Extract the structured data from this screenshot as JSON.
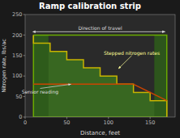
{
  "chart_data": {
    "type": "line",
    "title": "Ramp calibration strip",
    "xlabel": "Distance, feet",
    "ylabel": "Nitrogen rate, lbs/ac",
    "xlim": [
      0,
      180
    ],
    "ylim": [
      0,
      250
    ],
    "xticks": [
      0,
      50,
      100,
      150
    ],
    "yticks": [
      0,
      50,
      100,
      150,
      200,
      250
    ],
    "series": [
      {
        "type": "area",
        "color": "#3a6e20",
        "x": [
          10,
          10,
          30,
          30,
          50,
          50,
          70,
          70,
          90,
          90,
          110,
          110,
          130,
          130,
          150,
          150,
          170,
          170,
          170,
          10
        ],
        "values": [
          200,
          180,
          180,
          160,
          160,
          140,
          140,
          120,
          120,
          100,
          100,
          80,
          80,
          60,
          60,
          40,
          40,
          0,
          0,
          0
        ]
      },
      {
        "type": "area",
        "color": "#2d5a1b",
        "x": [
          10,
          28,
          28,
          10
        ],
        "values": [
          0,
          0,
          200,
          200
        ]
      },
      {
        "type": "area",
        "color": "#2d5a1b",
        "x": [
          155,
          170,
          170,
          155
        ],
        "values": [
          0,
          0,
          200,
          200
        ]
      },
      {
        "type": "line",
        "color": "#6aaa00",
        "x": [
          10,
          170,
          170,
          10,
          10
        ],
        "values": [
          200,
          200,
          0,
          0,
          200
        ]
      },
      {
        "type": "line",
        "color": "#c8b400",
        "x": [
          10,
          10,
          30,
          30,
          50,
          50,
          70,
          70,
          90,
          90,
          110,
          110,
          130,
          130,
          150,
          150,
          170,
          170
        ],
        "values": [
          200,
          180,
          180,
          160,
          160,
          140,
          140,
          120,
          120,
          100,
          100,
          80,
          80,
          60,
          60,
          40,
          40,
          0
        ]
      },
      {
        "type": "line",
        "color": "#cc4400",
        "x": [
          10,
          130
        ],
        "values": [
          80,
          80
        ]
      },
      {
        "type": "line",
        "color": "#cc4400",
        "x": [
          130,
          170
        ],
        "values": [
          80,
          40
        ]
      }
    ],
    "annotations": [
      {
        "text": "Direction of travel",
        "x": 90,
        "y": 213,
        "span_x": [
          12,
          168
        ],
        "span_y": 208
      },
      {
        "text": "Stepped nitrogen rates",
        "x": 128,
        "y": 152,
        "arrow_x": 112,
        "arrow_y": 118,
        "color": "#ffff99"
      },
      {
        "text": "Sensor reading",
        "x": 18,
        "y": 57,
        "arrow_x": 55,
        "arrow_y": 80
      }
    ]
  }
}
